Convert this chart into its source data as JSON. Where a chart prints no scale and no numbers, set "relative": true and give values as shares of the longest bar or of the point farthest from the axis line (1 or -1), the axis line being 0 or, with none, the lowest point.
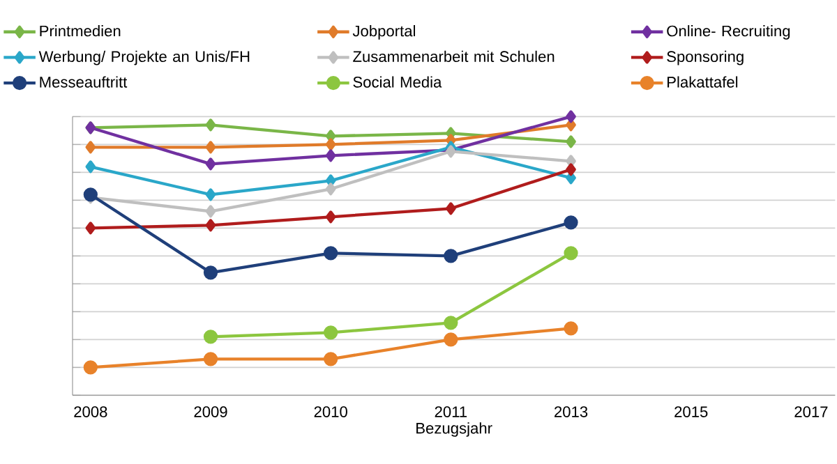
{
  "chart_data": {
    "type": "line",
    "relative": true,
    "xlabel": "Bezugsjahr",
    "grid": "y",
    "legend": "top",
    "categories": [
      "2008",
      "2009",
      "2010",
      "2011",
      "2013",
      "2015",
      "2017"
    ],
    "series": [
      {
        "name": "Printmedien",
        "color": "#7ab648",
        "marker": "diamond",
        "values": [
          0.96,
          0.97,
          0.93,
          0.94,
          0.91,
          null,
          null
        ]
      },
      {
        "name": "Jobportal",
        "color": "#e07b2a",
        "marker": "diamond",
        "values": [
          0.89,
          0.89,
          0.9,
          0.915,
          0.97,
          null,
          null
        ]
      },
      {
        "name": "Online- Recruiting",
        "color": "#7030a0",
        "marker": "diamond",
        "values": [
          0.96,
          0.83,
          0.86,
          0.88,
          1.0,
          null,
          null
        ]
      },
      {
        "name": "Werbung/ Projekte an Unis/FH",
        "color": "#2aa7c9",
        "marker": "diamond",
        "values": [
          0.82,
          0.72,
          0.77,
          0.89,
          0.78,
          null,
          null
        ]
      },
      {
        "name": "Zusammenarbeit mit Schulen",
        "color": "#bfbfbf",
        "marker": "diamond",
        "values": [
          0.71,
          0.66,
          0.74,
          0.875,
          0.84,
          null,
          null
        ]
      },
      {
        "name": "Sponsoring",
        "color": "#b01c1c",
        "marker": "diamond",
        "values": [
          0.6,
          0.61,
          0.64,
          0.67,
          0.81,
          null,
          null
        ]
      },
      {
        "name": "Messeauftritt",
        "color": "#1f3f7a",
        "marker": "circle",
        "values": [
          0.72,
          0.44,
          0.51,
          0.5,
          0.62,
          null,
          null
        ]
      },
      {
        "name": "Social Media",
        "color": "#8cc63f",
        "marker": "circle",
        "values": [
          null,
          0.21,
          0.225,
          0.26,
          0.51,
          null,
          null
        ]
      },
      {
        "name": "Plakattafel",
        "color": "#e8822a",
        "marker": "circle",
        "values": [
          0.1,
          0.13,
          0.13,
          0.2,
          0.24,
          null,
          null
        ]
      }
    ]
  }
}
